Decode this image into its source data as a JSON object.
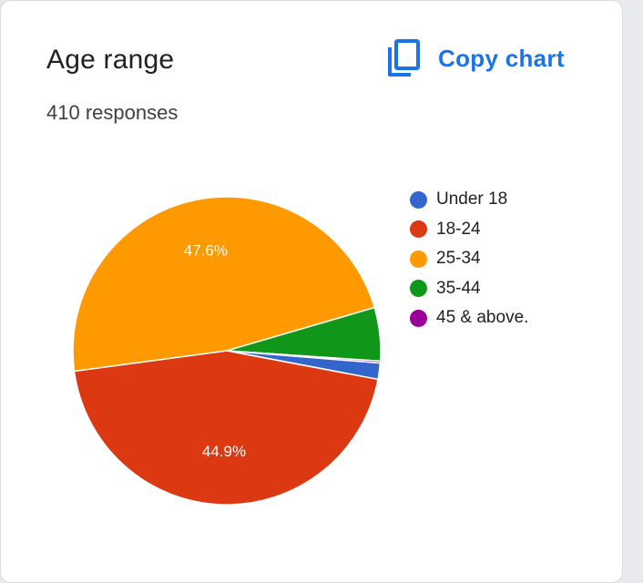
{
  "header": {
    "title": "Age range",
    "responses": "410 responses",
    "copy_label": "Copy chart",
    "copy_icon": "copy-icon"
  },
  "colors": {
    "accent": "#1a73e8",
    "under_18": "#3366cc",
    "age_18_24": "#dc3912",
    "age_25_34": "#ff9900",
    "age_35_44": "#109618",
    "age_45_above": "#990099"
  },
  "chart_data": {
    "type": "pie",
    "title": "Age range",
    "subtitle": "410 responses",
    "legend_position": "right",
    "categories": [
      "Under 18",
      "18-24",
      "25-34",
      "35-44",
      "45 & above."
    ],
    "values": [
      1.7,
      44.9,
      47.6,
      5.6,
      0.2
    ],
    "data_labels": [
      "",
      "44.9%",
      "47.6%",
      "",
      ""
    ],
    "colors": [
      "#3366cc",
      "#dc3912",
      "#ff9900",
      "#109618",
      "#990099"
    ]
  }
}
